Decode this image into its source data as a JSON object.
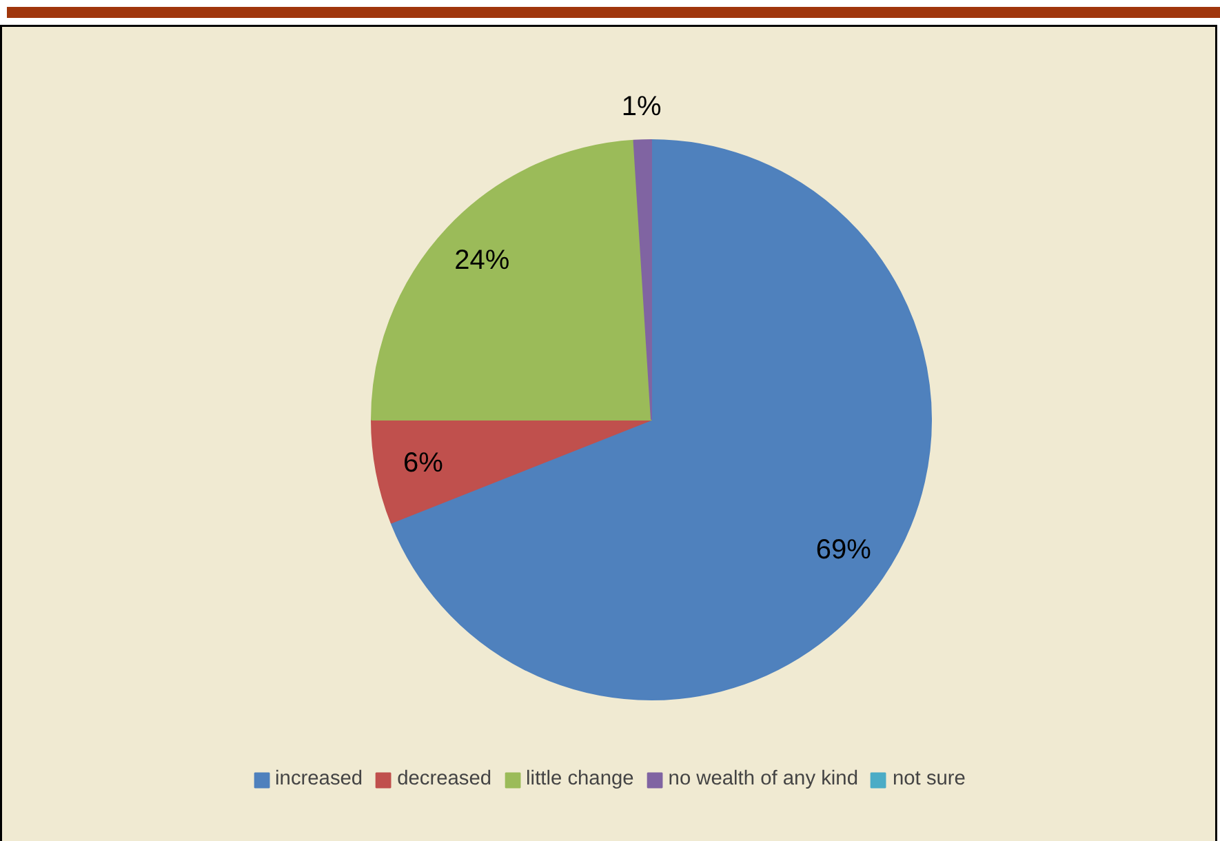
{
  "chart_data": {
    "type": "pie",
    "categories": [
      "increased",
      "decreased",
      "little change",
      "no wealth of any kind",
      "not sure"
    ],
    "values": [
      69,
      6,
      24,
      1,
      0
    ],
    "colors": [
      "#4f81bd",
      "#c0504d",
      "#9bbb59",
      "#8064a2",
      "#4bacc6"
    ],
    "value_labels": [
      "69%",
      "6%",
      "24%",
      "1%",
      null
    ],
    "legend": "bottom"
  }
}
